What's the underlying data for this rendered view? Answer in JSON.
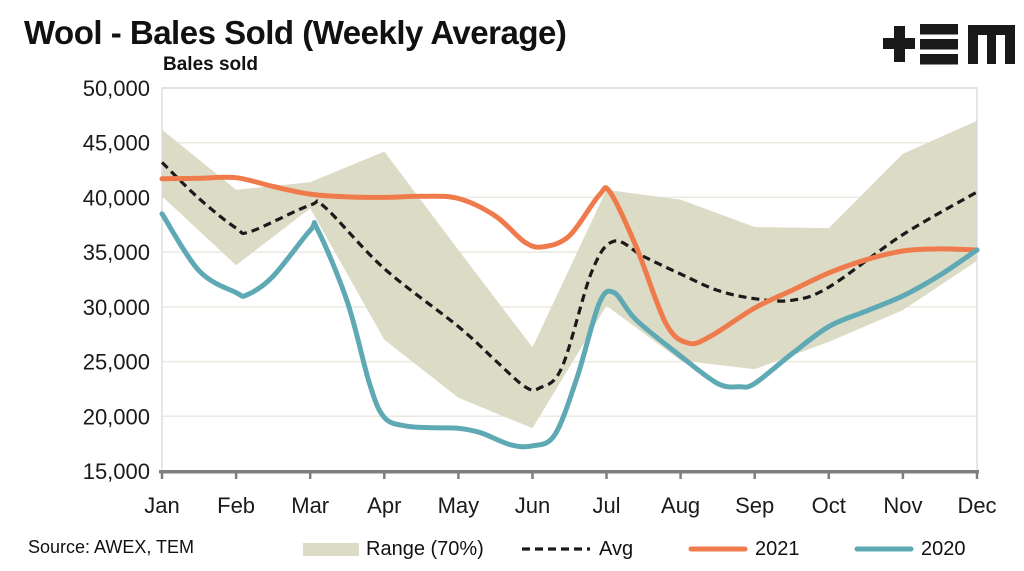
{
  "header": {
    "title": "Wool - Bales Sold (Weekly Average)",
    "logo_name": "TEM"
  },
  "footer": {
    "source": "Source: AWEX, TEM"
  },
  "chart_data": {
    "type": "line",
    "title": "Wool - Bales Sold (Weekly Average)",
    "ylabel": "Bales sold",
    "xlabel": "",
    "x_categories": [
      "Jan",
      "Feb",
      "Mar",
      "Apr",
      "May",
      "Jun",
      "Jul",
      "Aug",
      "Sep",
      "Oct",
      "Nov",
      "Dec"
    ],
    "ylim": [
      15000,
      50000
    ],
    "grid": true,
    "legend_position": "bottom",
    "y_ticks": [
      {
        "value": 50000,
        "label": "50,000"
      },
      {
        "value": 45000,
        "label": "45,000"
      },
      {
        "value": 40000,
        "label": "40,000"
      },
      {
        "value": 35000,
        "label": "35,000"
      },
      {
        "value": 30000,
        "label": "30,000"
      },
      {
        "value": 25000,
        "label": "25,000"
      },
      {
        "value": 20000,
        "label": "20,000"
      },
      {
        "value": 15000,
        "label": "15,000"
      }
    ],
    "band": {
      "name": "Range (70%)",
      "color": "#DCDCC6",
      "top": [
        46200,
        40700,
        41400,
        44200,
        35200,
        26300,
        40700,
        39800,
        37300,
        37200,
        44000,
        47000
      ],
      "bottom": [
        40100,
        33800,
        39000,
        27000,
        21700,
        18900,
        30100,
        25100,
        24300,
        26800,
        29700,
        34200
      ]
    },
    "series": [
      {
        "name": "Avg",
        "color": "#1A1A1A",
        "style": "dashed",
        "width": 3.2,
        "points": [
          [
            0,
            43200
          ],
          [
            0.5,
            39900
          ],
          [
            1,
            37200
          ],
          [
            1.2,
            36900
          ],
          [
            2,
            39300
          ],
          [
            2.2,
            39100
          ],
          [
            3,
            33500
          ],
          [
            4,
            28200
          ],
          [
            4.5,
            25100
          ],
          [
            4.9,
            22700
          ],
          [
            5.1,
            22600
          ],
          [
            5.4,
            24500
          ],
          [
            5.8,
            33200
          ],
          [
            6.1,
            36000
          ],
          [
            6.5,
            34600
          ],
          [
            7,
            33000
          ],
          [
            7.5,
            31500
          ],
          [
            8,
            30750
          ],
          [
            8.5,
            30600
          ],
          [
            9,
            31800
          ],
          [
            10,
            36600
          ],
          [
            11,
            40500
          ]
        ]
      },
      {
        "name": "2021",
        "color": "#EF7B4D",
        "style": "solid",
        "width": 5,
        "points": [
          [
            0,
            41700
          ],
          [
            0.5,
            41750
          ],
          [
            1,
            41800
          ],
          [
            1.5,
            41000
          ],
          [
            2,
            40300
          ],
          [
            2.5,
            40050
          ],
          [
            3,
            40000
          ],
          [
            3.5,
            40100
          ],
          [
            4,
            39900
          ],
          [
            4.5,
            38300
          ],
          [
            4.9,
            35900
          ],
          [
            5.15,
            35500
          ],
          [
            5.5,
            36500
          ],
          [
            5.9,
            40200
          ],
          [
            6.05,
            40450
          ],
          [
            6.4,
            35500
          ],
          [
            6.8,
            28500
          ],
          [
            7.1,
            26700
          ],
          [
            7.4,
            27300
          ],
          [
            8,
            29900
          ],
          [
            8.5,
            31500
          ],
          [
            9,
            33100
          ],
          [
            9.5,
            34300
          ],
          [
            10,
            35100
          ],
          [
            10.5,
            35300
          ],
          [
            11,
            35200
          ]
        ]
      },
      {
        "name": "2020",
        "color": "#5FA9B5",
        "style": "solid",
        "width": 5,
        "points": [
          [
            0,
            38500
          ],
          [
            0.5,
            33300
          ],
          [
            1,
            31300
          ],
          [
            1.15,
            31100
          ],
          [
            1.5,
            32800
          ],
          [
            2,
            37000
          ],
          [
            2.1,
            37050
          ],
          [
            2.5,
            30500
          ],
          [
            2.8,
            23000
          ],
          [
            3,
            19900
          ],
          [
            3.3,
            19100
          ],
          [
            3.7,
            18950
          ],
          [
            4,
            18900
          ],
          [
            4.3,
            18500
          ],
          [
            4.7,
            17400
          ],
          [
            5,
            17300
          ],
          [
            5.3,
            18300
          ],
          [
            5.6,
            23500
          ],
          [
            5.9,
            30300
          ],
          [
            6.1,
            31300
          ],
          [
            6.4,
            28800
          ],
          [
            7,
            25500
          ],
          [
            7.5,
            23000
          ],
          [
            7.8,
            22700
          ],
          [
            8,
            23000
          ],
          [
            8.5,
            25700
          ],
          [
            9,
            28200
          ],
          [
            9.5,
            29600
          ],
          [
            10,
            31000
          ],
          [
            10.5,
            32900
          ],
          [
            11,
            35200
          ]
        ]
      }
    ],
    "axis_color": "#7F7F7F",
    "grid_color": "#EAEAE1",
    "border_color": "#D9D9D9"
  }
}
